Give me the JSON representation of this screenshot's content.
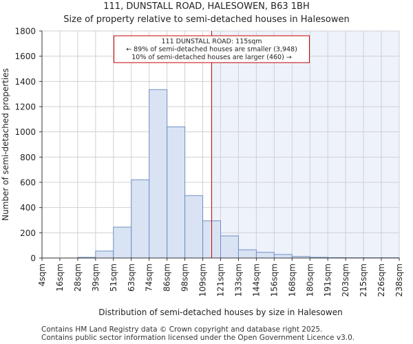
{
  "chart_data": {
    "type": "bar",
    "title": "111, DUNSTALL ROAD, HALESOWEN, B63 1BH",
    "subtitle": "Size of property relative to semi-detached houses in Halesowen",
    "xlabel": "Distribution of semi-detached houses by size in Halesowen",
    "ylabel": "Number of semi-detached properties",
    "ylim": [
      0,
      1800
    ],
    "yticks": [
      "0",
      "200",
      "400",
      "600",
      "800",
      "1000",
      "1200",
      "1400",
      "1600",
      "1800"
    ],
    "bin_edges_labels": [
      "4sqm",
      "16sqm",
      "28sqm",
      "39sqm",
      "51sqm",
      "63sqm",
      "74sqm",
      "86sqm",
      "98sqm",
      "109sqm",
      "121sqm",
      "133sqm",
      "144sqm",
      "156sqm",
      "168sqm",
      "180sqm",
      "191sqm",
      "203sqm",
      "215sqm",
      "226sqm",
      "238sqm"
    ],
    "values": [
      0,
      0,
      5,
      55,
      245,
      620,
      1335,
      1040,
      495,
      295,
      175,
      65,
      45,
      28,
      12,
      5,
      3,
      2,
      2,
      2
    ],
    "marker_value": 115,
    "marker_label": "111 DUNSTALL ROAD: 115sqm",
    "annotation_lines": [
      "111 DUNSTALL ROAD: 115sqm",
      "← 89% of semi-detached houses are smaller (3,948)",
      "10% of semi-detached houses are larger (460) →"
    ],
    "colors": {
      "bar_fill": "#dae3f3",
      "bar_edge": "#6f8fc4",
      "highlight_fill": "#eef2fb",
      "marker": "#c00000",
      "grid": "#d0d0d0"
    }
  },
  "footer": {
    "line1": "Contains HM Land Registry data © Crown copyright and database right 2025.",
    "line2": "Contains public sector information licensed under the Open Government Licence v3.0."
  }
}
